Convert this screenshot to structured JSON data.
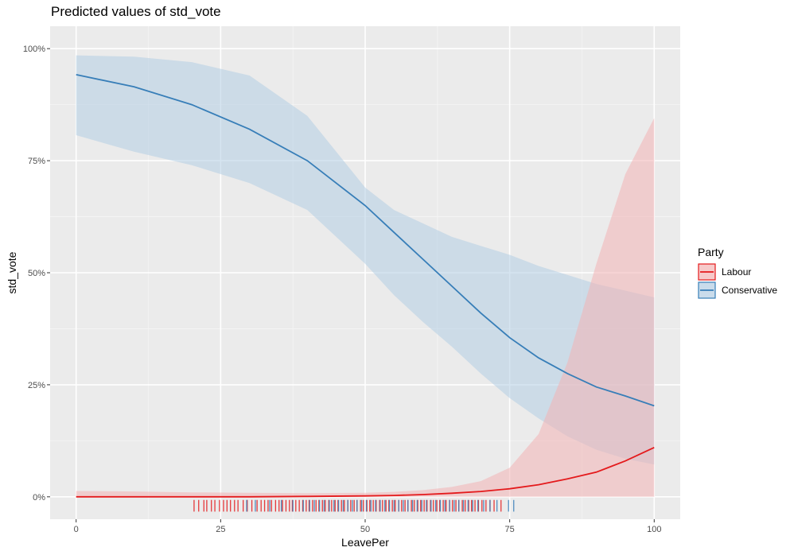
{
  "chart_data": {
    "type": "line",
    "title": "Predicted values of std_vote",
    "xlabel": "LeavePer",
    "ylabel": "std_vote",
    "xlim": [
      -4.5,
      104.5
    ],
    "ylim": [
      -0.05,
      1.05
    ],
    "x_ticks": [
      0,
      25,
      50,
      75,
      100
    ],
    "x_tick_labels": [
      "0",
      "25",
      "50",
      "75",
      "100"
    ],
    "y_ticks": [
      0,
      0.25,
      0.5,
      0.75,
      1.0
    ],
    "y_tick_labels": [
      "0%",
      "25%",
      "50%",
      "75%",
      "100%"
    ],
    "grid": true,
    "legend": {
      "title": "Party",
      "position": "right"
    },
    "series": [
      {
        "name": "Labour",
        "color": "#E41A1C",
        "fill": "#F2B3B4",
        "x": [
          0,
          10,
          20,
          30,
          40,
          50,
          55,
          60,
          65,
          70,
          75,
          80,
          85,
          90,
          95,
          100
        ],
        "y": [
          0.0,
          0.0,
          0.0,
          0.0,
          0.001,
          0.002,
          0.003,
          0.005,
          0.008,
          0.012,
          0.018,
          0.027,
          0.04,
          0.055,
          0.08,
          0.11
        ],
        "lower": [
          0.0,
          0.0,
          0.0,
          0.0,
          0.0,
          0.0,
          0.0,
          0.0,
          0.0,
          0.0,
          0.0,
          0.0,
          0.0,
          0.0,
          0.0,
          0.0
        ],
        "upper": [
          0.013,
          0.012,
          0.01,
          0.009,
          0.008,
          0.009,
          0.011,
          0.015,
          0.022,
          0.035,
          0.065,
          0.14,
          0.3,
          0.52,
          0.72,
          0.845
        ],
        "rug": [
          20.4,
          21.2,
          22.1,
          22.6,
          23.4,
          24.0,
          24.8,
          25.5,
          26.1,
          26.7,
          27.4,
          28.0,
          28.9,
          29.6,
          30.4,
          31.3,
          32.0,
          32.6,
          33.2,
          33.8,
          34.5,
          35.1,
          35.7,
          36.3,
          36.9,
          37.4,
          38.0,
          38.6,
          39.2,
          39.8,
          40.3,
          40.9,
          41.5,
          42.0,
          42.6,
          43.1,
          43.7,
          44.2,
          44.8,
          45.3,
          45.9,
          46.4,
          47.0,
          47.5,
          48.1,
          48.6,
          49.2,
          49.7,
          50.3,
          50.8,
          51.4,
          51.9,
          52.5,
          53.0,
          53.6,
          54.1,
          54.7,
          55.2,
          55.8,
          56.3,
          56.9,
          57.4,
          58.0,
          58.5,
          59.1,
          59.6,
          60.2,
          60.7,
          61.3,
          61.8,
          62.4,
          62.9,
          63.5,
          64.0,
          64.6,
          65.1,
          65.7,
          66.2,
          66.8,
          67.3,
          67.9,
          68.4,
          69.0,
          69.6,
          70.2,
          70.9,
          71.6,
          72.3,
          73.5
        ]
      },
      {
        "name": "Conservative",
        "color": "#377EB8",
        "fill": "#B3CDE3",
        "x": [
          0,
          10,
          20,
          30,
          40,
          50,
          55,
          60,
          65,
          70,
          75,
          80,
          85,
          90,
          95,
          100
        ],
        "y": [
          0.942,
          0.915,
          0.875,
          0.82,
          0.75,
          0.65,
          0.59,
          0.53,
          0.47,
          0.41,
          0.355,
          0.31,
          0.275,
          0.245,
          0.225,
          0.203
        ],
        "lower": [
          0.807,
          0.77,
          0.74,
          0.7,
          0.64,
          0.52,
          0.45,
          0.39,
          0.335,
          0.275,
          0.22,
          0.175,
          0.135,
          0.105,
          0.085,
          0.072
        ],
        "upper": [
          0.985,
          0.982,
          0.97,
          0.94,
          0.85,
          0.69,
          0.64,
          0.61,
          0.58,
          0.56,
          0.54,
          0.515,
          0.495,
          0.475,
          0.46,
          0.445
        ],
        "rug": [
          29.5,
          31.0,
          33.5,
          35.5,
          37.5,
          39.3,
          40.4,
          41.2,
          42.1,
          42.9,
          43.8,
          44.6,
          45.4,
          46.2,
          47.0,
          47.8,
          48.6,
          49.4,
          50.2,
          51.0,
          51.8,
          52.6,
          53.4,
          54.2,
          55.0,
          55.8,
          56.6,
          57.4,
          58.2,
          59.0,
          59.8,
          60.6,
          61.4,
          62.2,
          63.0,
          63.8,
          64.6,
          65.4,
          66.2,
          67.0,
          67.8,
          68.6,
          69.5,
          70.5,
          71.6,
          72.8,
          74.8,
          75.7
        ]
      }
    ]
  }
}
